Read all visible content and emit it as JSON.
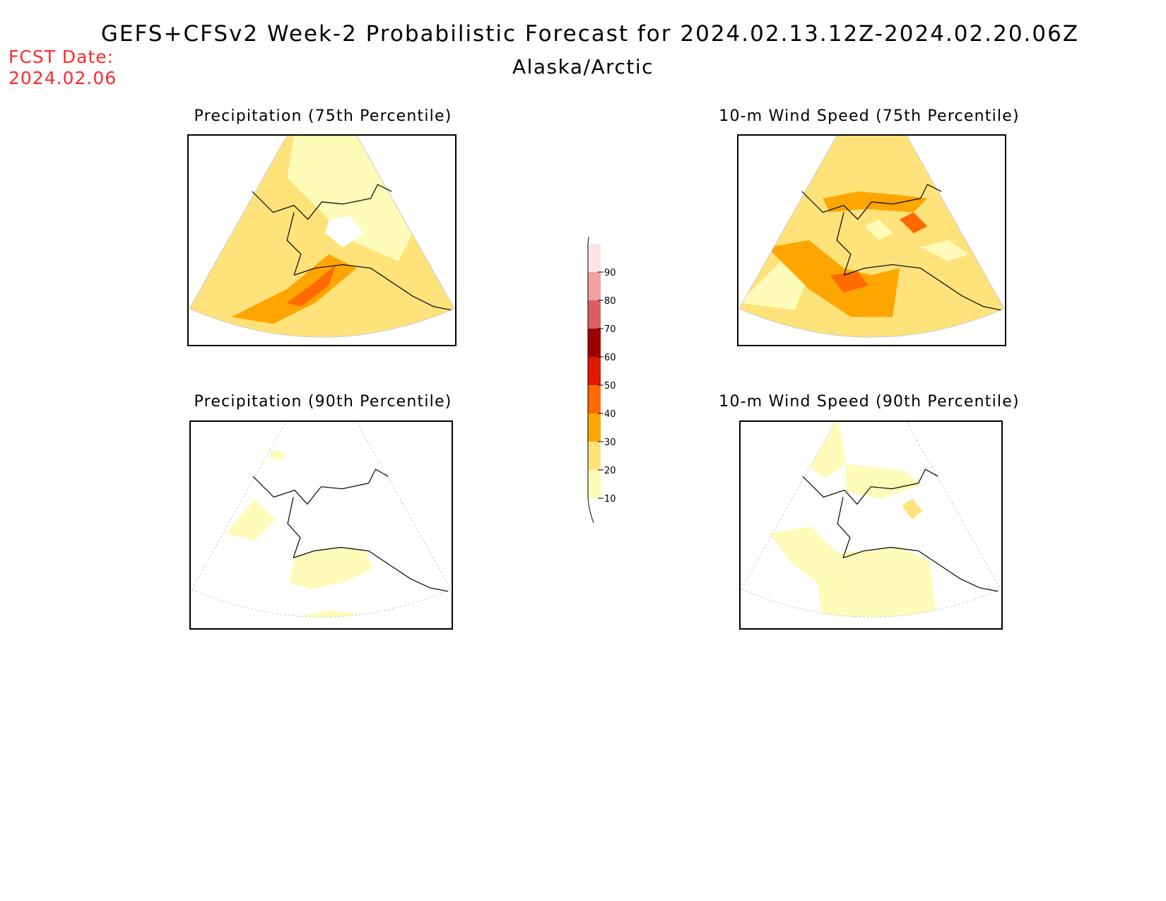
{
  "header": {
    "title": "GEFS+CFSv2 Week-2 Probabilistic Forecast for 2024.02.13.12Z-2024.02.20.06Z",
    "region": "Alaska/Arctic",
    "fcst_date_label": "FCST Date:",
    "fcst_date_value": "2024.02.06"
  },
  "panels": [
    {
      "id": "precip-75",
      "title": "Precipitation (75th Percentile)"
    },
    {
      "id": "wind-75",
      "title": "10-m Wind Speed (75th Percentile)"
    },
    {
      "id": "precip-90",
      "title": "Precipitation (90th Percentile)"
    },
    {
      "id": "wind-90",
      "title": "10-m Wind Speed (90th Percentile)"
    }
  ],
  "colorbar": {
    "ticks": [
      "10",
      "20",
      "30",
      "40",
      "50",
      "60",
      "70",
      "80",
      "90"
    ],
    "colors": {
      "10": "#fffbb8",
      "20": "#ffe37a",
      "30": "#ffa500",
      "40": "#ff6a00",
      "50": "#e01800",
      "60": "#a00000",
      "70": "#d86060",
      "80": "#f0a0a0",
      "90": "#fde4e4"
    }
  }
}
